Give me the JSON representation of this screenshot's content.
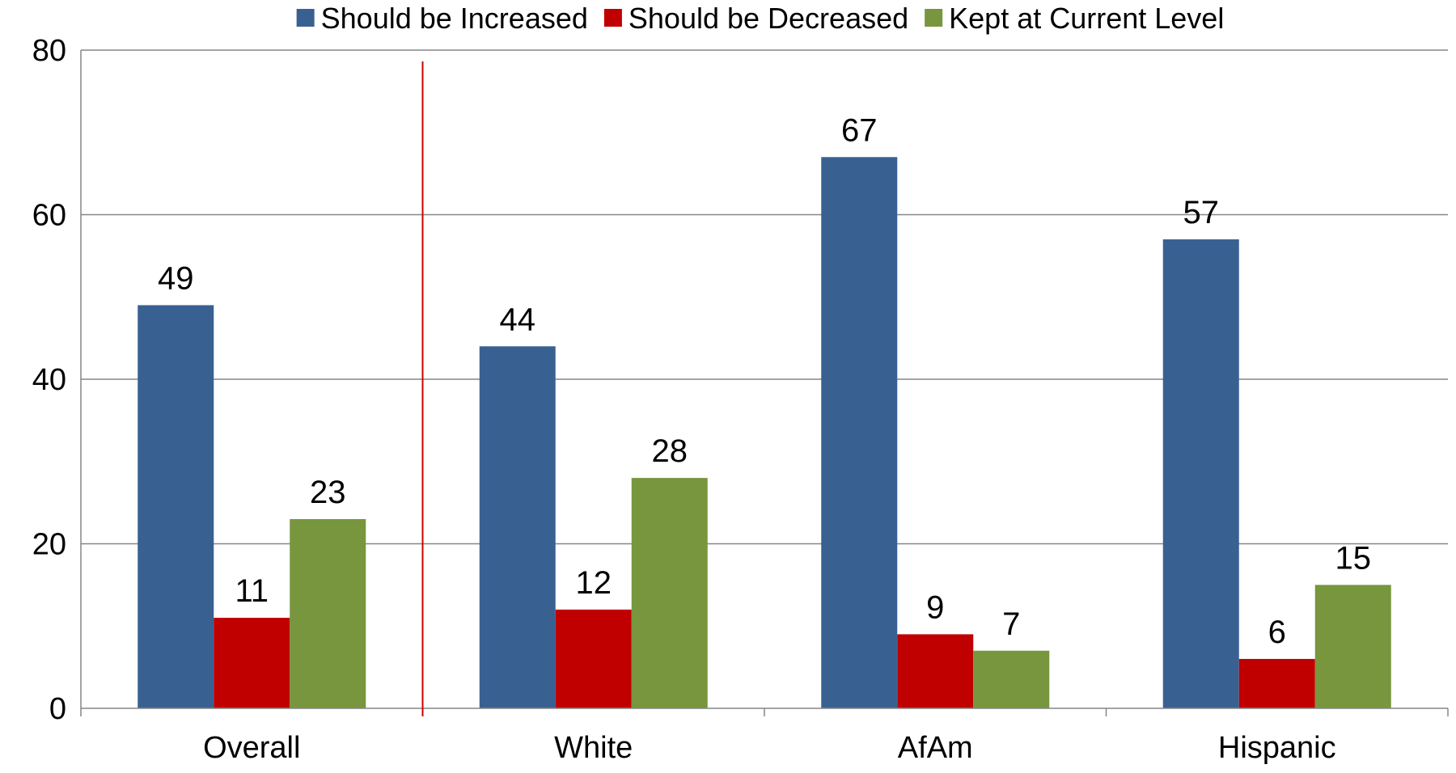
{
  "chart_data": {
    "type": "bar",
    "title": "",
    "xlabel": "",
    "ylabel": "",
    "categories": [
      "Overall",
      "White",
      "AfAm",
      "Hispanic"
    ],
    "series": [
      {
        "name": "Should be Increased",
        "color": "#386192",
        "values": [
          49,
          44,
          67,
          57
        ]
      },
      {
        "name": "Should be Decreased",
        "color": "#c00000",
        "values": [
          11,
          12,
          9,
          6
        ]
      },
      {
        "name": "Kept at Current Level",
        "color": "#77963d",
        "values": [
          23,
          28,
          7,
          15
        ]
      }
    ],
    "ylim": [
      0,
      80
    ],
    "yticks": [
      0,
      20,
      40,
      60,
      80
    ],
    "grid": true,
    "legend_position": "top",
    "separator_after_category": "Overall",
    "separator_color": "#cc0000",
    "gridline_color": "#868686"
  }
}
